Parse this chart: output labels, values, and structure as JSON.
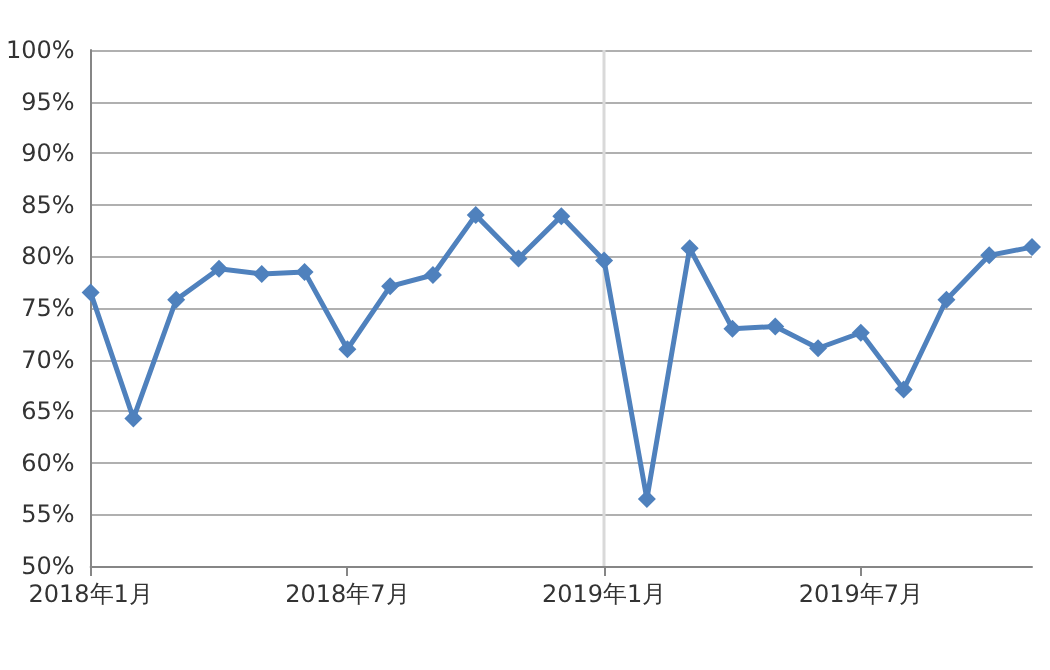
{
  "chart_data": {
    "type": "line",
    "categories": [
      "2018年1月",
      null,
      null,
      null,
      null,
      null,
      "2018年7月",
      null,
      null,
      null,
      null,
      null,
      "2019年1月",
      null,
      null,
      null,
      null,
      null,
      "2019年7月",
      null,
      null,
      null,
      null
    ],
    "series": [
      {
        "color": "#4f81bd",
        "values": [
          76.5,
          64.3,
          75.8,
          78.8,
          78.3,
          78.5,
          71,
          77.1,
          78.2,
          84,
          79.8,
          83.9,
          79.6,
          56.5,
          80.8,
          73,
          73.2,
          71.1,
          72.6,
          67.1,
          75.8,
          80.1,
          80.9
        ]
      }
    ],
    "ylim": [
      50,
      100
    ],
    "yticks": [
      {
        "value": 50,
        "label": "50%"
      },
      {
        "value": 55,
        "label": "55%"
      },
      {
        "value": 60,
        "label": "60%"
      },
      {
        "value": 65,
        "label": "65%"
      },
      {
        "value": 70,
        "label": "70%"
      },
      {
        "value": 75,
        "label": "75%"
      },
      {
        "value": 80,
        "label": "80%"
      },
      {
        "value": 85,
        "label": "85%"
      },
      {
        "value": 90,
        "label": "90%"
      },
      {
        "value": 95,
        "label": "95%"
      },
      {
        "value": 100,
        "label": "100%"
      }
    ],
    "ref_lines": [
      {
        "axis": "x",
        "value": "2019年1月",
        "color": "#d9d9d9"
      }
    ],
    "grid": "y",
    "marker": "diamond",
    "line_style": "solid"
  }
}
